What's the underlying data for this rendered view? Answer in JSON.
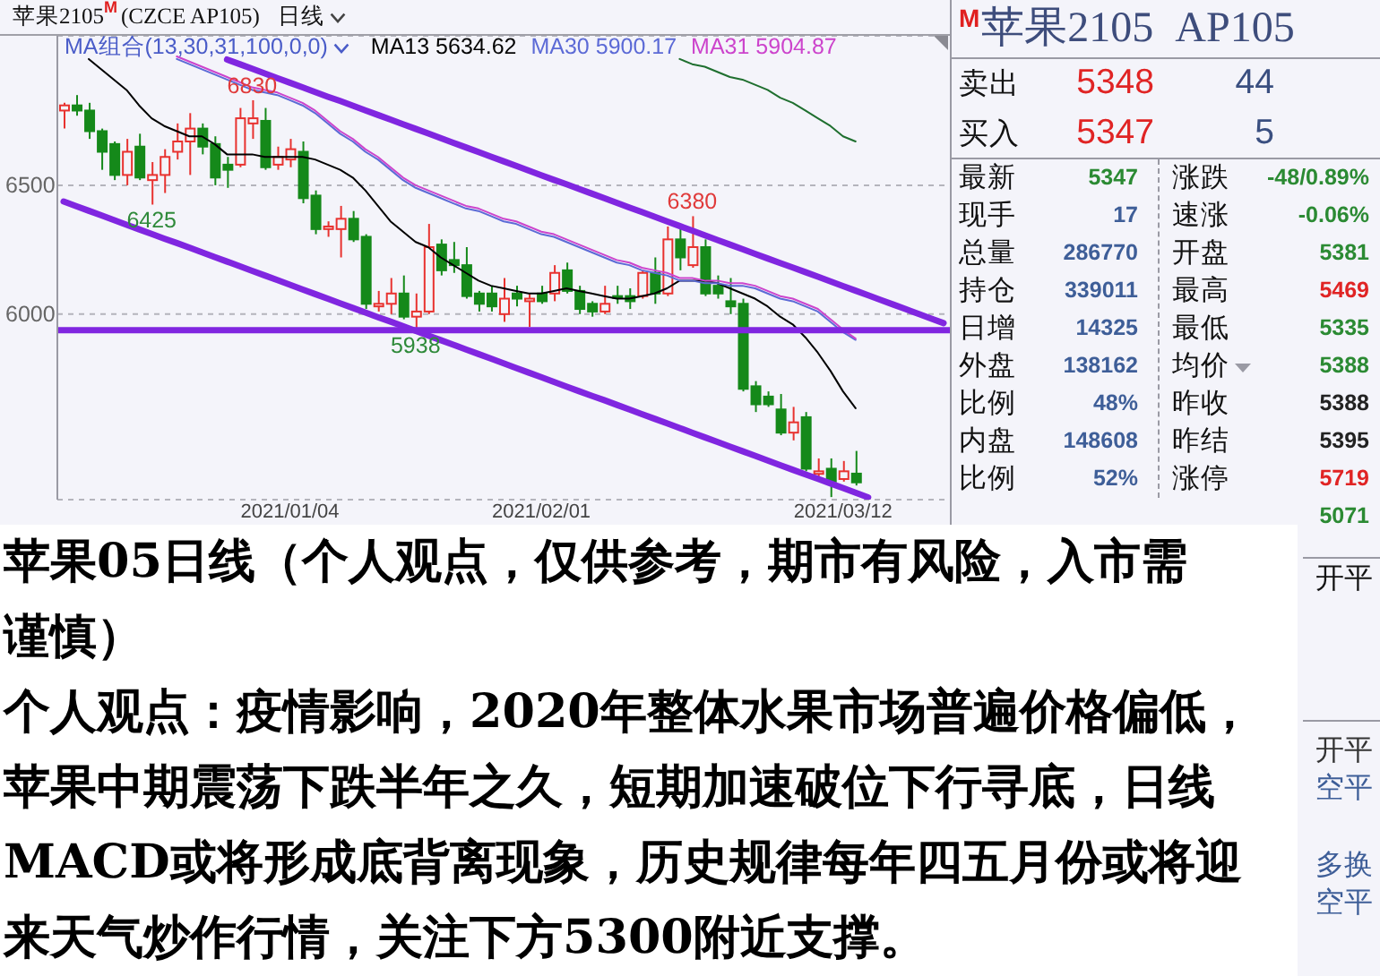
{
  "chart_data": [
    {
      "type": "candlestick",
      "title": "苹果2105$^{M}$(CZCE AP105)",
      "subtitle": "日线",
      "legend_title": "MA组合(13,30,31,100,0,0)",
      "categories": [
        null,
        null,
        null,
        null,
        null,
        null,
        null,
        null,
        null,
        null,
        null,
        null,
        null,
        null,
        null,
        null,
        null,
        null,
        "2021/01/04",
        null,
        null,
        null,
        null,
        null,
        null,
        null,
        null,
        null,
        null,
        null,
        null,
        null,
        null,
        null,
        null,
        null,
        null,
        null,
        "2021/02/01",
        null,
        null,
        null,
        null,
        null,
        null,
        null,
        null,
        null,
        null,
        null,
        null,
        null,
        null,
        null,
        null,
        null,
        null,
        null,
        null,
        null,
        null,
        null,
        "2021/03/12",
        null,
        null,
        null,
        null,
        null,
        null,
        null,
        null
      ],
      "ohlc": [
        [
          6790,
          6820,
          6720,
          6810
        ],
        [
          6810,
          6850,
          6770,
          6790
        ],
        [
          6790,
          6820,
          6680,
          6710
        ],
        [
          6710,
          6720,
          6560,
          6630
        ],
        [
          6660,
          6670,
          6520,
          6540
        ],
        [
          6540,
          6680,
          6500,
          6630
        ],
        [
          6650,
          6700,
          6520,
          6530
        ],
        [
          6520,
          6590,
          6425,
          6540
        ],
        [
          6540,
          6640,
          6470,
          6610
        ],
        [
          6630,
          6740,
          6600,
          6670
        ],
        [
          6670,
          6780,
          6540,
          6720
        ],
        [
          6720,
          6740,
          6620,
          6650
        ],
        [
          6660,
          6690,
          6500,
          6530
        ],
        [
          6580,
          6610,
          6490,
          6560
        ],
        [
          6580,
          6800,
          6570,
          6760
        ],
        [
          6740,
          6830,
          6680,
          6760
        ],
        [
          6750,
          6800,
          6560,
          6570
        ],
        [
          6580,
          6650,
          6560,
          6610
        ],
        [
          6600,
          6680,
          6570,
          6640
        ],
        [
          6630,
          6670,
          6430,
          6450
        ],
        [
          6460,
          6480,
          6310,
          6330
        ],
        [
          6330,
          6360,
          6300,
          6340
        ],
        [
          6330,
          6420,
          6220,
          6370
        ],
        [
          6370,
          6400,
          6280,
          6290
        ],
        [
          6300,
          6310,
          6020,
          6040
        ],
        [
          6030,
          6090,
          6010,
          6040
        ],
        [
          6040,
          6140,
          6000,
          6080
        ],
        [
          6080,
          6150,
          5980,
          5990
        ],
        [
          5990,
          6080,
          5938,
          6010
        ],
        [
          6010,
          6350,
          6000,
          6260
        ],
        [
          6270,
          6290,
          6150,
          6170
        ],
        [
          6210,
          6280,
          6160,
          6190
        ],
        [
          6190,
          6260,
          6060,
          6070
        ],
        [
          6080,
          6090,
          6010,
          6040
        ],
        [
          6080,
          6110,
          6010,
          6030
        ],
        [
          6000,
          6140,
          5970,
          6060
        ],
        [
          6080,
          6110,
          6030,
          6060
        ],
        [
          6050,
          6080,
          5950,
          6060
        ],
        [
          6080,
          6110,
          6040,
          6050
        ],
        [
          6080,
          6190,
          6050,
          6160
        ],
        [
          6170,
          6200,
          6080,
          6090
        ],
        [
          6090,
          6110,
          6000,
          6020
        ],
        [
          6040,
          6050,
          5990,
          6010
        ],
        [
          6010,
          6110,
          6000,
          6040
        ],
        [
          6070,
          6110,
          6040,
          6070
        ],
        [
          6070,
          6100,
          6020,
          6050
        ],
        [
          6070,
          6170,
          6060,
          6160
        ],
        [
          6160,
          6220,
          6040,
          6080
        ],
        [
          6080,
          6340,
          6070,
          6290
        ],
        [
          6290,
          6340,
          6170,
          6220
        ],
        [
          6190,
          6380,
          6180,
          6260
        ],
        [
          6260,
          6290,
          6070,
          6080
        ],
        [
          6110,
          6150,
          6060,
          6080
        ],
        [
          6050,
          6140,
          6000,
          6030
        ],
        [
          6040,
          6060,
          5700,
          5710
        ],
        [
          5720,
          5740,
          5620,
          5650
        ],
        [
          5680,
          5700,
          5640,
          5650
        ],
        [
          5630,
          5690,
          5530,
          5540
        ],
        [
          5540,
          5640,
          5510,
          5580
        ],
        [
          5600,
          5620,
          5390,
          5400
        ],
        [
          5380,
          5440,
          5360,
          5390
        ],
        [
          5400,
          5440,
          5290,
          5350
        ],
        [
          5360,
          5430,
          5350,
          5390
        ],
        [
          5381,
          5469,
          5335,
          5347
        ],
        null,
        null,
        null,
        null,
        null,
        null,
        null
      ],
      "colors": [
        "#e8322f",
        "#15891a",
        "#15891a",
        "#15891a",
        "#15891a",
        "#e8322f",
        "#15891a",
        "#e8322f",
        "#e8322f",
        "#e8322f",
        "#e8322f",
        "#15891a",
        "#15891a",
        "#15891a",
        "#e8322f",
        "#e8322f",
        "#15891a",
        "#e8322f",
        "#e8322f",
        "#15891a",
        "#15891a",
        "#e8322f",
        "#e8322f",
        "#15891a",
        "#15891a",
        "#e8322f",
        "#e8322f",
        "#15891a",
        "#e8322f",
        "#e8322f",
        "#15891a",
        "#15891a",
        "#15891a",
        "#15891a",
        "#15891a",
        "#e8322f",
        "#15891a",
        "#e8322f",
        "#15891a",
        "#e8322f",
        "#15891a",
        "#15891a",
        "#15891a",
        "#e8322f",
        "#15891a",
        "#15891a",
        "#e8322f",
        "#15891a",
        "#e8322f",
        "#15891a",
        "#e8322f",
        "#15891a",
        "#15891a",
        "#15891a",
        "#15891a",
        "#15891a",
        "#15891a",
        "#15891a",
        "#e8322f",
        "#15891a",
        "#e8322f",
        "#15891a",
        "#e8322f",
        "#15891a",
        null,
        null,
        null,
        null,
        null,
        null,
        null
      ],
      "series": [
        {
          "type": "line",
          "name": "MA13 5634.62",
          "color": "#000000",
          "values": [
            null,
            null,
            6990,
            6950,
            6910,
            6870,
            6810,
            6760,
            6730,
            6710,
            6690,
            6690,
            6660,
            6620,
            6620,
            6620,
            6610,
            6610,
            6610,
            6610,
            6600,
            6580,
            6560,
            6530,
            6480,
            6420,
            6360,
            6320,
            6280,
            6260,
            6220,
            6190,
            6160,
            6130,
            6110,
            6100,
            6090,
            6080,
            6080,
            6090,
            6100,
            6090,
            6080,
            6070,
            6060,
            6060,
            6070,
            6080,
            6100,
            6130,
            6130,
            6130,
            6120,
            6100,
            6080,
            6060,
            6030,
            5990,
            5960,
            5910,
            5850,
            5780,
            5700,
            5634.62,
            null,
            null,
            null,
            null,
            null,
            null,
            null
          ]
        },
        {
          "type": "line",
          "name": "MA30 5900.17",
          "color": "#5c6ad6",
          "values": [
            null,
            null,
            null,
            null,
            null,
            null,
            null,
            null,
            null,
            6990,
            6970,
            6950,
            6930,
            6910,
            6890,
            6870,
            6860,
            6850,
            6830,
            6810,
            6780,
            6740,
            6700,
            6670,
            6630,
            6600,
            6560,
            6520,
            6490,
            6470,
            6450,
            6430,
            6410,
            6400,
            6380,
            6360,
            6350,
            6330,
            6310,
            6300,
            6280,
            6260,
            6240,
            6220,
            6200,
            6190,
            6170,
            6160,
            6150,
            6130,
            6130,
            6120,
            6120,
            6110,
            6110,
            6100,
            6080,
            6060,
            6050,
            6030,
            6010,
            5970,
            5930,
            5900.17,
            null,
            null,
            null,
            null,
            null,
            null,
            null
          ]
        },
        {
          "type": "line",
          "name": "MA31 5904.87",
          "color": "#cc44cc",
          "values": [
            null,
            null,
            null,
            null,
            null,
            null,
            null,
            null,
            null,
            7000,
            6980,
            6960,
            6940,
            6920,
            6900,
            6880,
            6870,
            6860,
            6840,
            6820,
            6790,
            6750,
            6710,
            6680,
            6640,
            6610,
            6570,
            6530,
            6500,
            6480,
            6460,
            6440,
            6420,
            6410,
            6390,
            6370,
            6360,
            6340,
            6320,
            6310,
            6290,
            6270,
            6250,
            6230,
            6210,
            6200,
            6180,
            6170,
            6160,
            6140,
            6140,
            6130,
            6130,
            6120,
            6120,
            6110,
            6090,
            6070,
            6060,
            6040,
            6020,
            5980,
            5940,
            5904.87,
            null,
            null,
            null,
            null,
            null,
            null,
            null
          ]
        },
        {
          "type": "line",
          "color": "#1f6f2f",
          "values": [
            null,
            null,
            null,
            null,
            null,
            null,
            null,
            null,
            null,
            null,
            null,
            null,
            null,
            null,
            null,
            null,
            null,
            null,
            null,
            null,
            null,
            null,
            null,
            null,
            null,
            null,
            null,
            null,
            null,
            null,
            null,
            null,
            null,
            null,
            null,
            null,
            null,
            null,
            null,
            null,
            null,
            null,
            null,
            null,
            null,
            null,
            null,
            null,
            null,
            6990,
            6970,
            6960,
            6940,
            6920,
            6910,
            6890,
            6870,
            6840,
            6820,
            6790,
            6760,
            6730,
            6690,
            6670,
            null,
            null,
            null,
            null,
            null,
            null,
            null
          ]
        },
        {
          "type": "line",
          "color": "#8026e0",
          "values": [
            null,
            null,
            null,
            null,
            null,
            null,
            null,
            null,
            null,
            null,
            null,
            null,
            null,
            6988,
            6970,
            6952,
            6934,
            6916,
            6898,
            6880,
            6862,
            6844,
            6827,
            6809,
            6791,
            6773,
            6755,
            6737,
            6719,
            6701,
            6683,
            6665,
            6647,
            6629,
            6611,
            6593,
            6575,
            6557,
            6539,
            6521,
            6504,
            6486,
            6468,
            6450,
            6432,
            6414,
            6396,
            6378,
            6360,
            6342,
            6324,
            6306,
            6288,
            6270,
            6252,
            6234,
            6216,
            6198,
            6181,
            6163,
            6145,
            6127,
            6109,
            6091,
            6073,
            6055,
            6037,
            6019,
            6001,
            5983,
            5965
          ]
        },
        {
          "type": "line",
          "color": "#8026e0",
          "values": [
            6437,
            6419,
            6401,
            6383,
            6365,
            6347,
            6329,
            6311,
            6293,
            6276,
            6258,
            6240,
            6222,
            6204,
            6186,
            6168,
            6150,
            6132,
            6114,
            6096,
            6078,
            6060,
            6042,
            6024,
            6006,
            5988,
            5971,
            5953,
            5935,
            5917,
            5899,
            5881,
            5863,
            5845,
            5827,
            5809,
            5791,
            5773,
            5755,
            5737,
            5719,
            5701,
            5683,
            5666,
            5648,
            5630,
            5612,
            5594,
            5576,
            5558,
            5540,
            5522,
            5504,
            5486,
            5468,
            5450,
            5432,
            5414,
            5396,
            5378,
            5361,
            5343,
            5325,
            5307,
            5289,
            null,
            null,
            null,
            null,
            null,
            null
          ]
        }
      ],
      "ylim": [
        5280,
        7080
      ],
      "yticks": [
        6000,
        6500
      ],
      "grid": "y",
      "legend": "top",
      "ref_lines": [
        {
          "axis": "y",
          "value": 5938,
          "color": "#8026e0"
        }
      ],
      "annotations": [
        {
          "text": "6830",
          "y": 6830
        },
        {
          "text": "6425",
          "y": 6425
        },
        {
          "text": "5938",
          "y": 5938
        },
        {
          "text": "6380",
          "y": 6380
        }
      ]
    },
    {
      "type": "other",
      "title": "$^{M}$苹果2105 AP105",
      "annotations": [
        "卖出",
        "5348",
        "44",
        "买入",
        "5347",
        "5",
        "最新",
        "5347",
        "涨跌",
        "-48/0.89%",
        "现手",
        "17",
        "速涨",
        "-0.06%",
        "总量",
        "286770",
        "开盘",
        "5381",
        "持仓",
        "339011",
        "最高",
        "5469",
        "日增",
        "14325",
        "最低",
        "5335",
        "外盘",
        "138162",
        "均价",
        "5388",
        "比例",
        "48%",
        "昨收",
        "5388",
        "内盘",
        "148608",
        "昨结",
        "5395",
        "比例",
        "52%",
        "涨停",
        "5719",
        null,
        null,
        null,
        "5071",
        "开平",
        "开平",
        "空平",
        null,
        "多换",
        "空平"
      ]
    },
    {
      "type": "other",
      "annotations": [
        "苹果05日线（个人观点，仅供参考，期市有风险，入市需谨慎）",
        "个人观点：疫情影响，2020年整体水果市场普遍价格偏低，苹果中期震荡下跌半年之久，短期加速破位下行寻底，日线MACD或将形成底背离现象，历史规律每年四五月份或将迎来天气炒作行情，关注下方5300附近支撑。"
      ]
    }
  ]
}
